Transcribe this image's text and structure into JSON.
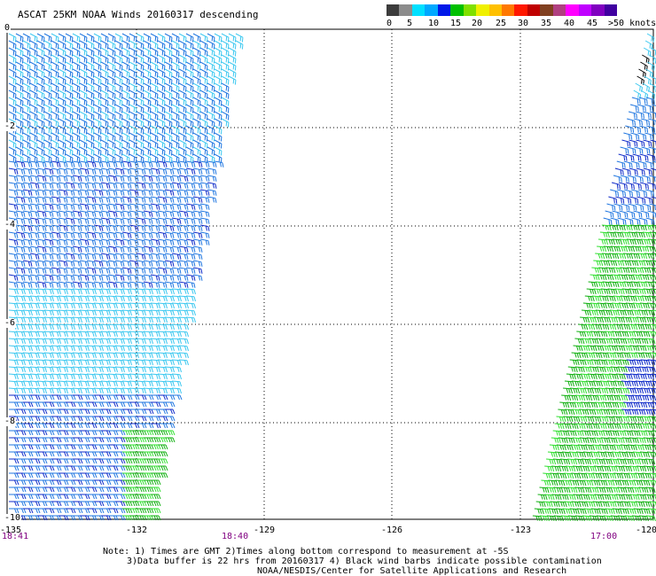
{
  "title": "ASCAT 25KM NOAA Winds 20160317 descending",
  "legend": {
    "unit": ">50 knots",
    "labels": [
      "0",
      "5",
      "10",
      "15",
      "20",
      "25",
      "30",
      "35",
      "40",
      "45"
    ],
    "colors": [
      "#3c3c3c",
      "#8c8c8c",
      "#00e0ff",
      "#00a8ff",
      "#0018e8",
      "#00c000",
      "#80e000",
      "#f0f000",
      "#ffc000",
      "#ff7800",
      "#ff1800",
      "#c00000",
      "#804020",
      "#b04080",
      "#ff00ff",
      "#c000ff",
      "#8000c0",
      "#4000a0"
    ]
  },
  "axes": {
    "y_labels": [
      "0",
      "-2",
      "-4",
      "-6",
      "-8",
      "-10"
    ],
    "x_labels": [
      "-135",
      "-132",
      "-129",
      "-126",
      "-123",
      "-120"
    ]
  },
  "times": {
    "left_start": "18:41",
    "left_end": "18:40",
    "right": "17:00"
  },
  "barb_colors": {
    "light_blue": "#3cc8f0",
    "mid_blue": "#1c74e0",
    "dark_blue": "#0c28c8",
    "green": "#10b010",
    "bright_green": "#30e030",
    "black": "#000000"
  },
  "notes": [
    "Note: 1) Times are GMT 2)Times along bottom correspond to measurement at -5S",
    "3)Data buffer is 22 hrs from 20160317 4) Black wind barbs indicate possible contamination",
    "NOAA/NESDIS/Center for Satellite Applications and Research"
  ]
}
